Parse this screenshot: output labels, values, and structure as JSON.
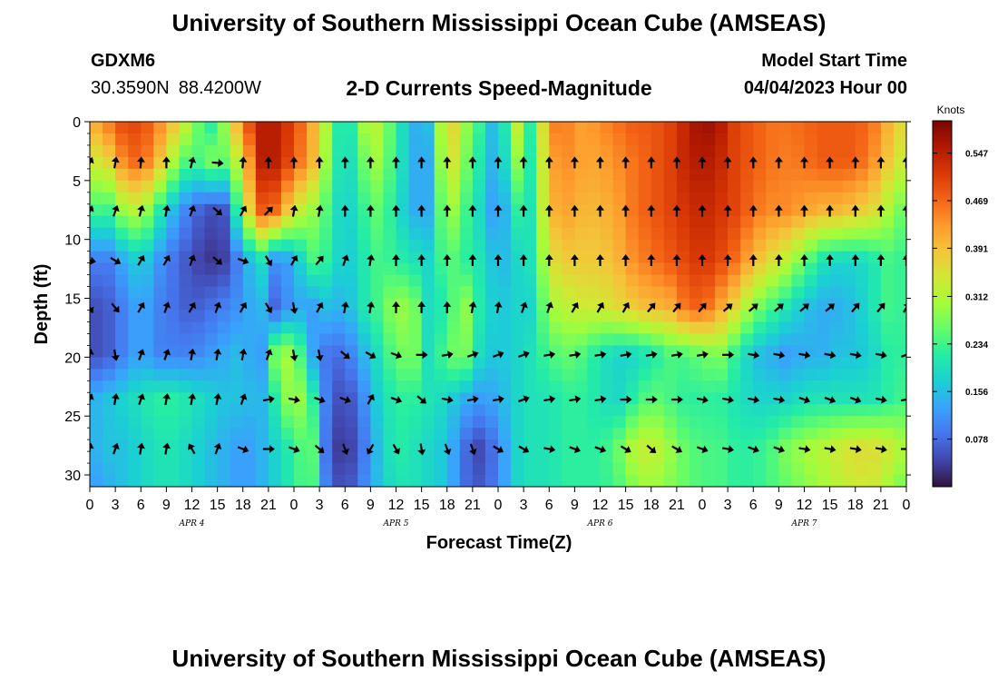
{
  "header": {
    "title": "University of Southern Mississippi Ocean Cube (AMSEAS)",
    "station": "GDXM6",
    "lat": "30.3590N",
    "lon": "88.4200W",
    "subtitle": "2-D Currents Speed-Magnitude",
    "model_start_label": "Model Start Time",
    "model_start_value": "04/04/2023 Hour 00"
  },
  "footer": {
    "title": "University of Southern Mississippi Ocean Cube (AMSEAS)"
  },
  "chart_data": {
    "type": "heatmap",
    "title": "2-D Currents Speed-Magnitude",
    "xlabel": "Forecast Time(Z)",
    "ylabel": "Depth (ft)",
    "units": "Knots",
    "x_hours": [
      0,
      96
    ],
    "ylim": [
      0,
      31
    ],
    "x_ticks": [
      "0",
      "3",
      "6",
      "9",
      "12",
      "15",
      "18",
      "21",
      "0",
      "3",
      "6",
      "9",
      "12",
      "15",
      "18",
      "21",
      "0",
      "3",
      "6",
      "9",
      "12",
      "15",
      "18",
      "21",
      "0",
      "3",
      "6",
      "9",
      "12",
      "15",
      "18",
      "21",
      "0"
    ],
    "y_ticks": [
      0,
      5,
      10,
      15,
      20,
      25,
      30
    ],
    "day_labels": [
      {
        "label": "APR 4",
        "hour": 12
      },
      {
        "label": "APR 5",
        "hour": 36
      },
      {
        "label": "APR 6",
        "hour": 60
      },
      {
        "label": "APR 7",
        "hour": 84
      }
    ],
    "colorbar": {
      "min": 0.0,
      "max": 0.6,
      "ticks": [
        0.078,
        0.156,
        0.234,
        0.312,
        0.391,
        0.469,
        0.547
      ],
      "tick_labels": [
        "0.078",
        "0.156",
        "0.234",
        "0.312",
        "0.391",
        "0.469",
        "0.547"
      ],
      "colors": [
        "#30123b",
        "#4145ab",
        "#4675ed",
        "#39a2fc",
        "#1bcfd4",
        "#24eca6",
        "#61fc6c",
        "#a4fc3b",
        "#d1e834",
        "#f3c63a",
        "#fe9b2d",
        "#f36315",
        "#d93806",
        "#b11901",
        "#7a0403"
      ]
    },
    "depth_levels": [
      0,
      3.3,
      7.6,
      11.8,
      15.8,
      19.8,
      23.6,
      27.8,
      31
    ],
    "time_hours": [
      0,
      2,
      4,
      6,
      8,
      10,
      12,
      14,
      16,
      18,
      20,
      22,
      24,
      26,
      28,
      30,
      32,
      34,
      36,
      38,
      40,
      42,
      44,
      46,
      48,
      50,
      52,
      54,
      56,
      58,
      60,
      62,
      64,
      66,
      68,
      70,
      72,
      74,
      76,
      78,
      80,
      82,
      84,
      86,
      88,
      90,
      92,
      94,
      96
    ],
    "speed_grid": [
      [
        0.4,
        0.45,
        0.5,
        0.5,
        0.45,
        0.38,
        0.3,
        0.2,
        0.3,
        0.46,
        0.55,
        0.55,
        0.5,
        0.42,
        0.3,
        0.16,
        0.3,
        0.32,
        0.22,
        0.14,
        0.16,
        0.4,
        0.3,
        0.22,
        0.12,
        0.35,
        0.2,
        0.45,
        0.45,
        0.42,
        0.44,
        0.46,
        0.48,
        0.48,
        0.5,
        0.54,
        0.58,
        0.56,
        0.5,
        0.48,
        0.46,
        0.46,
        0.47,
        0.48,
        0.48,
        0.48,
        0.46,
        0.4,
        0.35
      ],
      [
        0.34,
        0.36,
        0.45,
        0.48,
        0.4,
        0.3,
        0.22,
        0.28,
        0.26,
        0.36,
        0.55,
        0.55,
        0.48,
        0.42,
        0.28,
        0.16,
        0.26,
        0.3,
        0.22,
        0.14,
        0.14,
        0.38,
        0.28,
        0.2,
        0.12,
        0.3,
        0.2,
        0.42,
        0.44,
        0.42,
        0.42,
        0.44,
        0.46,
        0.48,
        0.5,
        0.54,
        0.56,
        0.54,
        0.5,
        0.48,
        0.46,
        0.45,
        0.46,
        0.48,
        0.48,
        0.48,
        0.44,
        0.38,
        0.32
      ],
      [
        0.24,
        0.22,
        0.3,
        0.32,
        0.22,
        0.14,
        0.08,
        0.05,
        0.06,
        0.3,
        0.48,
        0.46,
        0.34,
        0.3,
        0.24,
        0.16,
        0.22,
        0.26,
        0.2,
        0.14,
        0.14,
        0.32,
        0.24,
        0.18,
        0.1,
        0.22,
        0.2,
        0.4,
        0.42,
        0.4,
        0.4,
        0.42,
        0.46,
        0.48,
        0.5,
        0.52,
        0.54,
        0.52,
        0.5,
        0.46,
        0.44,
        0.44,
        0.42,
        0.4,
        0.4,
        0.38,
        0.36,
        0.3,
        0.25
      ],
      [
        0.1,
        0.09,
        0.14,
        0.18,
        0.12,
        0.08,
        0.05,
        0.03,
        0.04,
        0.12,
        0.2,
        0.1,
        0.14,
        0.24,
        0.22,
        0.16,
        0.2,
        0.24,
        0.22,
        0.2,
        0.18,
        0.26,
        0.22,
        0.2,
        0.14,
        0.18,
        0.2,
        0.35,
        0.38,
        0.38,
        0.38,
        0.4,
        0.44,
        0.46,
        0.48,
        0.5,
        0.52,
        0.5,
        0.46,
        0.4,
        0.36,
        0.32,
        0.26,
        0.2,
        0.18,
        0.18,
        0.2,
        0.24,
        0.22
      ],
      [
        0.05,
        0.06,
        0.1,
        0.14,
        0.1,
        0.08,
        0.06,
        0.08,
        0.1,
        0.12,
        0.16,
        0.06,
        0.14,
        0.12,
        0.16,
        0.14,
        0.2,
        0.24,
        0.3,
        0.28,
        0.18,
        0.22,
        0.3,
        0.2,
        0.16,
        0.18,
        0.18,
        0.3,
        0.32,
        0.34,
        0.34,
        0.36,
        0.38,
        0.4,
        0.4,
        0.46,
        0.48,
        0.42,
        0.36,
        0.28,
        0.24,
        0.2,
        0.16,
        0.14,
        0.14,
        0.16,
        0.2,
        0.24,
        0.22
      ],
      [
        0.05,
        0.06,
        0.1,
        0.14,
        0.1,
        0.1,
        0.1,
        0.12,
        0.14,
        0.16,
        0.1,
        0.3,
        0.3,
        0.14,
        0.08,
        0.08,
        0.14,
        0.2,
        0.26,
        0.28,
        0.18,
        0.26,
        0.28,
        0.18,
        0.16,
        0.18,
        0.2,
        0.24,
        0.26,
        0.24,
        0.2,
        0.18,
        0.18,
        0.2,
        0.24,
        0.24,
        0.26,
        0.28,
        0.22,
        0.16,
        0.14,
        0.12,
        0.14,
        0.14,
        0.16,
        0.16,
        0.18,
        0.22,
        0.22
      ],
      [
        0.14,
        0.16,
        0.18,
        0.2,
        0.22,
        0.22,
        0.2,
        0.18,
        0.16,
        0.16,
        0.14,
        0.22,
        0.32,
        0.24,
        0.08,
        0.04,
        0.1,
        0.18,
        0.22,
        0.22,
        0.2,
        0.18,
        0.14,
        0.12,
        0.14,
        0.18,
        0.2,
        0.2,
        0.22,
        0.22,
        0.2,
        0.18,
        0.22,
        0.26,
        0.24,
        0.22,
        0.22,
        0.22,
        0.2,
        0.18,
        0.18,
        0.18,
        0.2,
        0.2,
        0.2,
        0.2,
        0.2,
        0.22,
        0.24
      ],
      [
        0.14,
        0.16,
        0.16,
        0.18,
        0.2,
        0.2,
        0.18,
        0.16,
        0.14,
        0.12,
        0.14,
        0.18,
        0.22,
        0.28,
        0.06,
        0.02,
        0.08,
        0.16,
        0.22,
        0.2,
        0.18,
        0.16,
        0.08,
        0.04,
        0.1,
        0.18,
        0.2,
        0.2,
        0.22,
        0.22,
        0.22,
        0.26,
        0.32,
        0.34,
        0.3,
        0.26,
        0.24,
        0.24,
        0.22,
        0.22,
        0.24,
        0.28,
        0.3,
        0.32,
        0.34,
        0.36,
        0.36,
        0.34,
        0.3
      ],
      [
        0.12,
        0.14,
        0.16,
        0.18,
        0.2,
        0.2,
        0.18,
        0.16,
        0.14,
        0.12,
        0.14,
        0.18,
        0.22,
        0.26,
        0.08,
        0.04,
        0.1,
        0.16,
        0.2,
        0.2,
        0.18,
        0.16,
        0.08,
        0.06,
        0.1,
        0.18,
        0.2,
        0.2,
        0.22,
        0.22,
        0.22,
        0.24,
        0.28,
        0.3,
        0.28,
        0.26,
        0.24,
        0.24,
        0.22,
        0.22,
        0.24,
        0.26,
        0.28,
        0.3,
        0.32,
        0.34,
        0.34,
        0.3,
        0.26
      ]
    ],
    "vector_rows": [
      {
        "depth": 3.5,
        "hours": [
          0,
          3,
          6,
          9,
          12,
          15,
          18,
          21,
          24,
          27,
          30,
          33,
          36,
          39,
          42,
          45,
          48,
          51,
          54,
          57,
          60,
          63,
          66,
          69,
          72,
          75,
          78,
          81,
          84,
          87,
          90,
          93,
          96
        ],
        "dirs": [
          25,
          10,
          5,
          0,
          15,
          95,
          5,
          0,
          0,
          0,
          0,
          0,
          0,
          0,
          0,
          0,
          0,
          0,
          0,
          0,
          0,
          0,
          0,
          0,
          0,
          0,
          0,
          0,
          0,
          0,
          0,
          0,
          0
        ]
      },
      {
        "depth": 7.6,
        "hours": [
          0,
          3,
          6,
          9,
          12,
          15,
          18,
          21,
          24,
          27,
          30,
          33,
          36,
          39,
          42,
          45,
          48,
          51,
          54,
          57,
          60,
          63,
          66,
          69,
          72,
          75,
          78,
          81,
          84,
          87,
          90,
          93,
          96
        ],
        "dirs": [
          25,
          20,
          15,
          10,
          20,
          130,
          30,
          45,
          10,
          10,
          0,
          0,
          0,
          0,
          0,
          0,
          0,
          0,
          0,
          0,
          0,
          0,
          0,
          0,
          0,
          0,
          0,
          0,
          0,
          0,
          0,
          0,
          0
        ]
      },
      {
        "depth": 11.8,
        "hours": [
          0,
          3,
          6,
          9,
          12,
          15,
          18,
          21,
          24,
          27,
          30,
          33,
          36,
          39,
          42,
          45,
          48,
          51,
          54,
          57,
          60,
          63,
          66,
          69,
          72,
          75,
          78,
          81,
          84,
          87,
          90,
          93,
          96
        ],
        "dirs": [
          100,
          120,
          30,
          30,
          20,
          130,
          110,
          150,
          30,
          40,
          20,
          10,
          0,
          0,
          0,
          0,
          0,
          0,
          0,
          0,
          0,
          0,
          0,
          0,
          0,
          0,
          0,
          0,
          0,
          0,
          0,
          0,
          0
        ]
      },
      {
        "depth": 15.8,
        "hours": [
          0,
          3,
          6,
          9,
          12,
          15,
          18,
          21,
          24,
          27,
          30,
          33,
          36,
          39,
          42,
          45,
          48,
          51,
          54,
          57,
          60,
          63,
          66,
          69,
          72,
          75,
          78,
          81,
          84,
          87,
          90,
          93,
          96
        ],
        "dirs": [
          150,
          140,
          30,
          20,
          30,
          20,
          30,
          150,
          170,
          30,
          10,
          10,
          0,
          0,
          0,
          10,
          10,
          20,
          20,
          30,
          30,
          30,
          40,
          40,
          40,
          50,
          50,
          50,
          50,
          50,
          40,
          40,
          30
        ]
      },
      {
        "depth": 19.8,
        "hours": [
          0,
          3,
          6,
          9,
          12,
          15,
          18,
          21,
          24,
          27,
          30,
          33,
          36,
          39,
          42,
          45,
          48,
          51,
          54,
          57,
          60,
          63,
          66,
          69,
          72,
          75,
          78,
          81,
          84,
          87,
          90,
          93,
          96
        ],
        "dirs": [
          10,
          170,
          20,
          20,
          10,
          10,
          10,
          20,
          170,
          170,
          130,
          120,
          110,
          90,
          80,
          70,
          70,
          70,
          80,
          80,
          80,
          80,
          80,
          80,
          80,
          90,
          100,
          100,
          100,
          100,
          100,
          100,
          70
        ]
      },
      {
        "depth": 23.6,
        "hours": [
          0,
          3,
          6,
          9,
          12,
          15,
          18,
          21,
          24,
          27,
          30,
          33,
          36,
          39,
          42,
          45,
          48,
          51,
          54,
          57,
          60,
          63,
          66,
          69,
          72,
          75,
          78,
          81,
          84,
          87,
          90,
          93,
          96
        ],
        "dirs": [
          20,
          10,
          20,
          10,
          10,
          10,
          20,
          80,
          100,
          110,
          110,
          30,
          110,
          130,
          100,
          80,
          80,
          70,
          80,
          80,
          80,
          90,
          90,
          90,
          100,
          100,
          100,
          100,
          110,
          110,
          110,
          100,
          80
        ]
      },
      {
        "depth": 27.8,
        "hours": [
          0,
          3,
          6,
          9,
          12,
          15,
          18,
          21,
          24,
          27,
          30,
          33,
          36,
          39,
          42,
          45,
          48,
          51,
          54,
          57,
          60,
          63,
          66,
          69,
          72,
          75,
          78,
          81,
          84,
          87,
          90,
          93,
          96
        ],
        "dirs": [
          10,
          20,
          10,
          10,
          330,
          20,
          110,
          90,
          110,
          130,
          160,
          210,
          150,
          170,
          160,
          160,
          120,
          120,
          100,
          110,
          110,
          120,
          130,
          120,
          110,
          100,
          110,
          110,
          100,
          100,
          100,
          100,
          90
        ]
      }
    ]
  }
}
